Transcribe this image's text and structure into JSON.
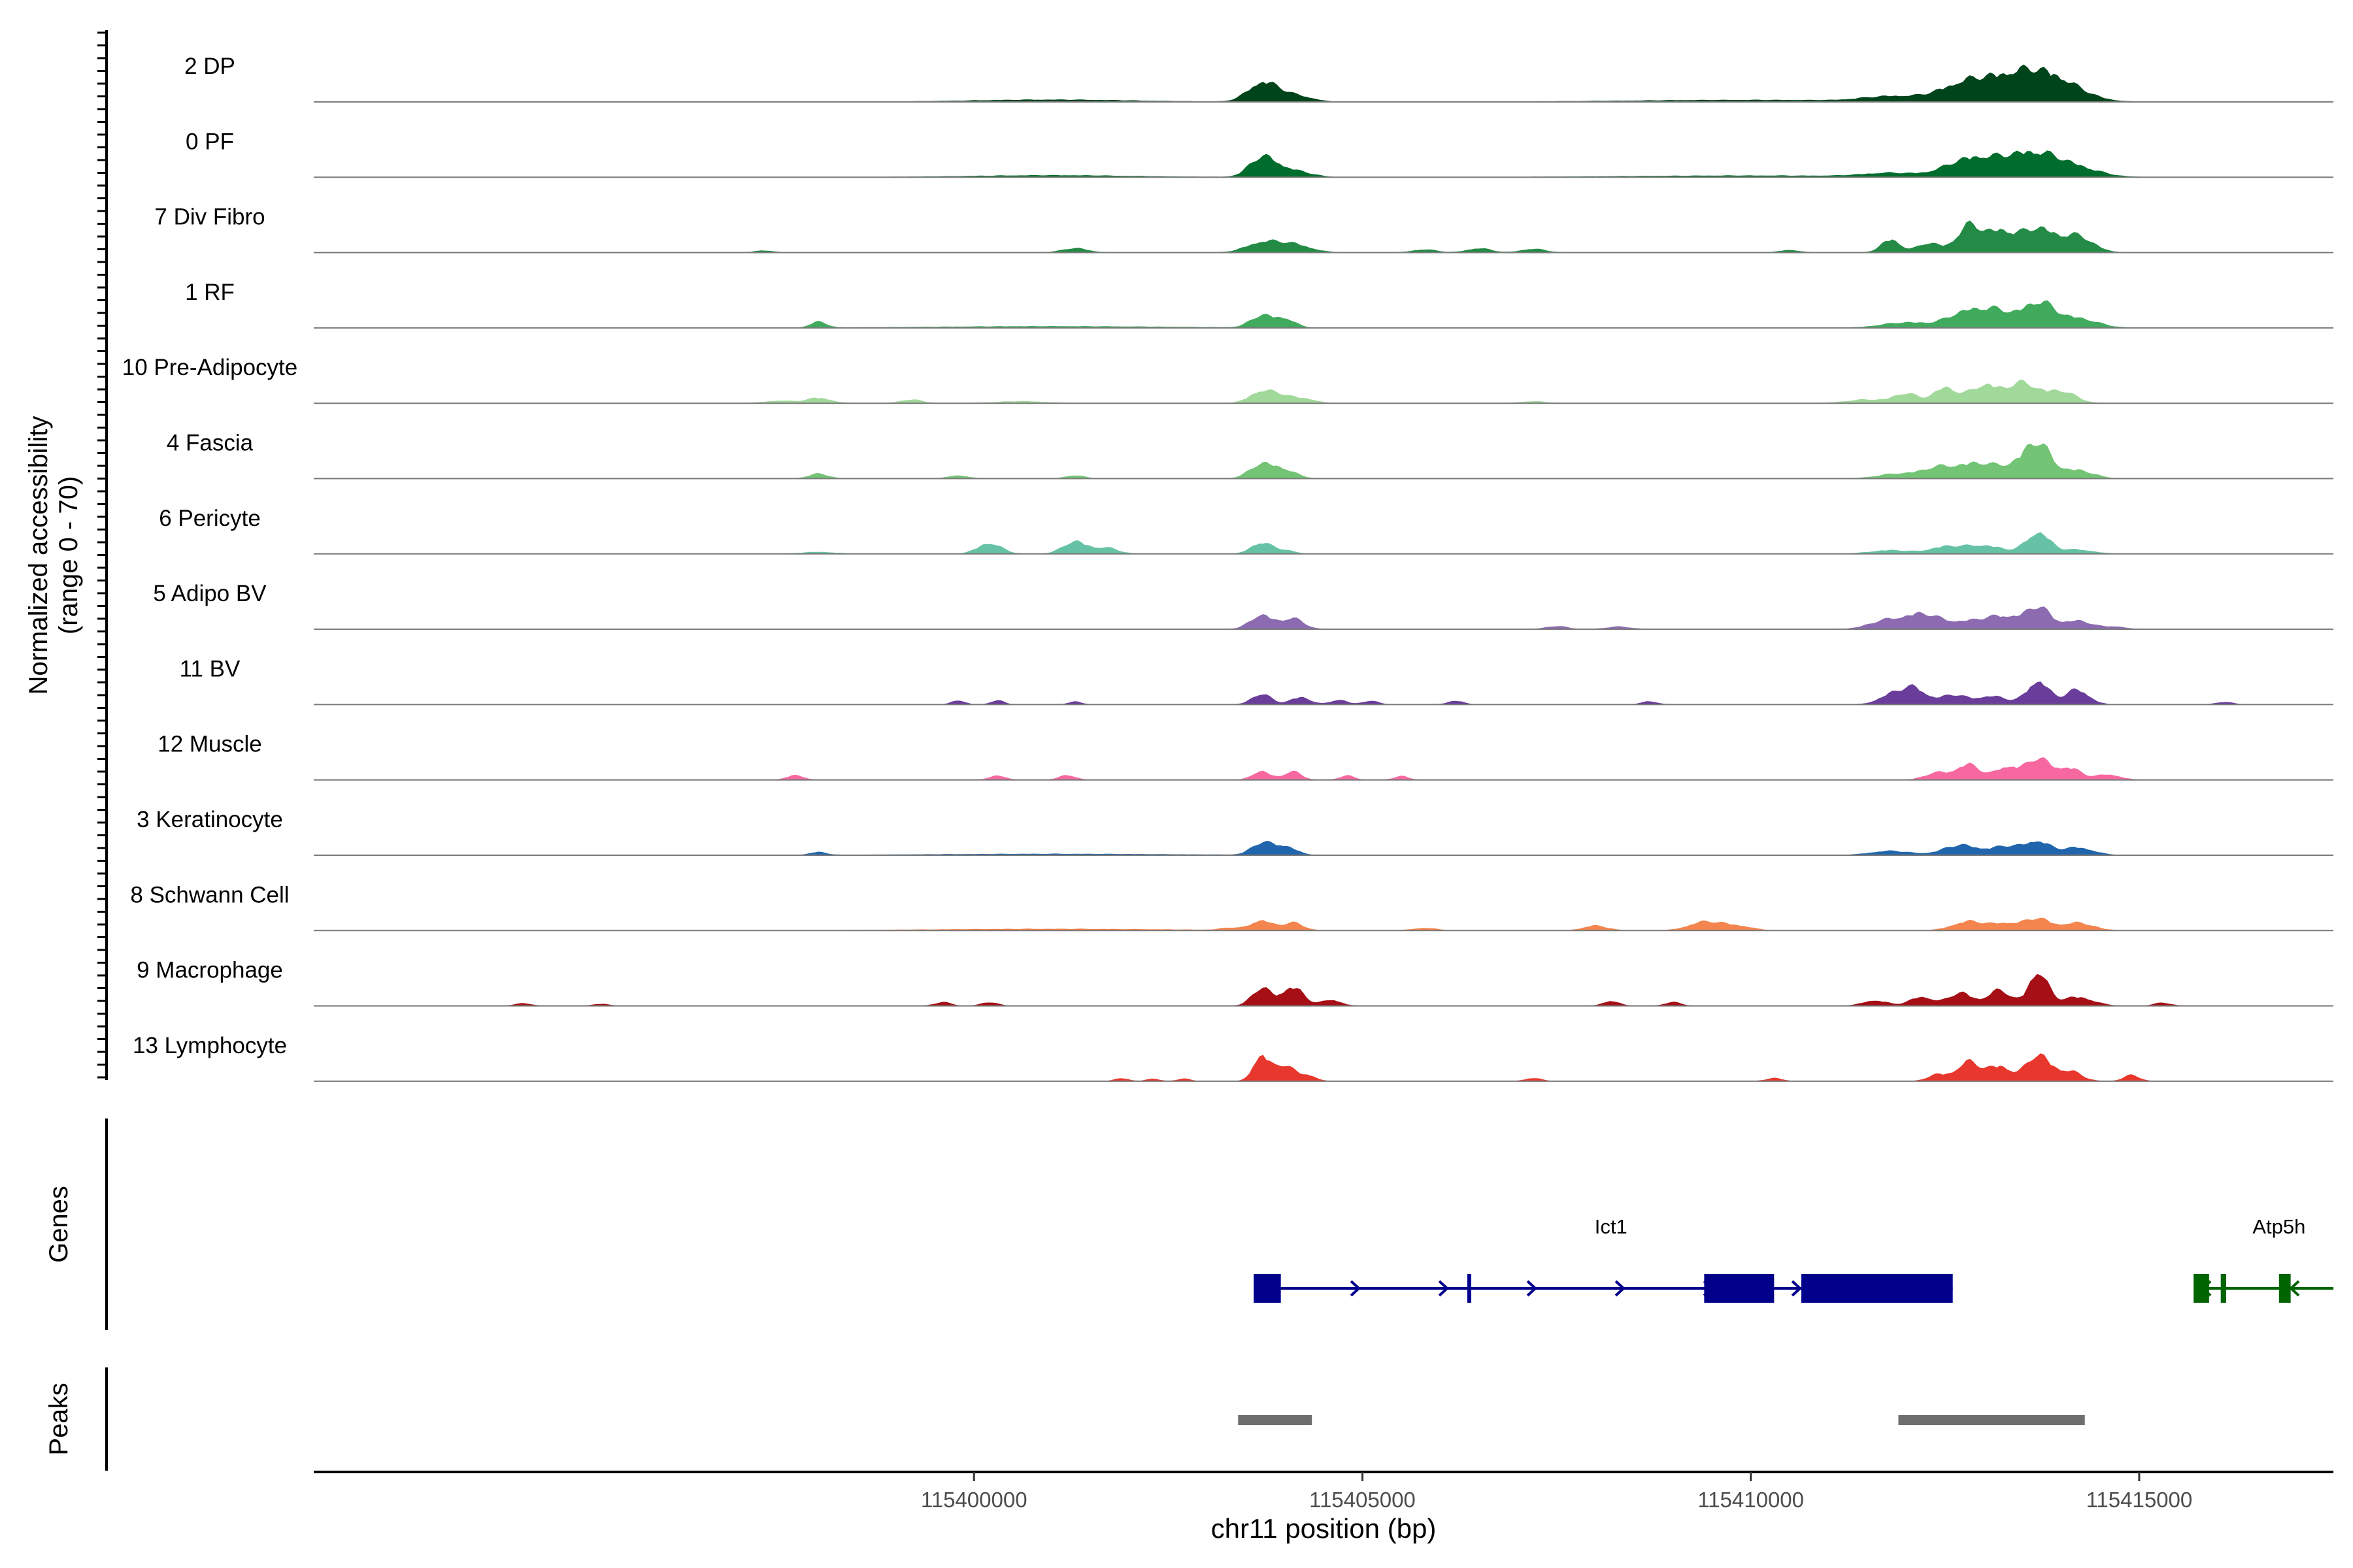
{
  "chart_data": {
    "type": "area",
    "title": "",
    "ylabel": "Normalized accessibility\n(range 0 - 70)",
    "xlabel": "chr11 position (bp)",
    "chromosome": "chr11",
    "xlim": [
      115391500,
      115417500
    ],
    "ylim": [
      0,
      70
    ],
    "xticks": [
      115400000,
      115405000,
      115410000,
      115415000
    ],
    "tick_labels": [
      "115400000",
      "115405000",
      "115410000",
      "115415000"
    ],
    "tracks": [
      {
        "name": "2 DP",
        "color": "#00441B",
        "peaks": [
          [
            115401000,
            0.35,
            1000
          ],
          [
            115403700,
            3.0,
            180
          ],
          [
            115404000,
            1.2,
            200
          ],
          [
            115404300,
            0.4,
            150
          ],
          [
            115411800,
            0.8,
            350
          ],
          [
            115412800,
            3.2,
            350
          ],
          [
            115413300,
            2.2,
            300
          ],
          [
            115413700,
            3.8,
            300
          ],
          [
            115414100,
            1.8,
            300
          ],
          [
            115410000,
            0.3,
            1500
          ]
        ]
      },
      {
        "name": "0 PF",
        "color": "#006D2C",
        "peaks": [
          [
            115401000,
            0.3,
            1000
          ],
          [
            115403700,
            3.2,
            160
          ],
          [
            115404000,
            1.3,
            180
          ],
          [
            115404300,
            0.4,
            150
          ],
          [
            115411800,
            0.6,
            350
          ],
          [
            115412800,
            2.8,
            300
          ],
          [
            115413300,
            1.8,
            300
          ],
          [
            115413700,
            3.2,
            300
          ],
          [
            115414200,
            1.4,
            300
          ],
          [
            115410000,
            0.25,
            1500
          ]
        ]
      },
      {
        "name": "7 Div Fibro",
        "color": "#238B45",
        "peaks": [
          [
            115397300,
            0.3,
            120
          ],
          [
            115401300,
            0.7,
            160
          ],
          [
            115403700,
            1.6,
            200
          ],
          [
            115404100,
            1.4,
            220
          ],
          [
            115405800,
            0.5,
            150
          ],
          [
            115406500,
            0.7,
            150
          ],
          [
            115407200,
            0.6,
            150
          ],
          [
            115411800,
            2.2,
            120
          ],
          [
            115412300,
            1.6,
            150
          ],
          [
            115412800,
            4.2,
            150
          ],
          [
            115413200,
            3.6,
            200
          ],
          [
            115413700,
            4.0,
            200
          ],
          [
            115414200,
            2.8,
            200
          ],
          [
            115410500,
            0.4,
            120
          ]
        ]
      },
      {
        "name": "1 RF",
        "color": "#41AB5D",
        "peaks": [
          [
            115398000,
            1.0,
            100
          ],
          [
            115403700,
            2.0,
            140
          ],
          [
            115404000,
            1.5,
            130
          ],
          [
            115412000,
            0.9,
            300
          ],
          [
            115412800,
            2.8,
            250
          ],
          [
            115413200,
            2.2,
            200
          ],
          [
            115413700,
            4.2,
            200
          ],
          [
            115414200,
            1.6,
            250
          ],
          [
            115401000,
            0.25,
            1500
          ]
        ]
      },
      {
        "name": "10 Pre-Adipocyte",
        "color": "#A1D99B",
        "peaks": [
          [
            115397500,
            0.4,
            180
          ],
          [
            115398000,
            0.9,
            150
          ],
          [
            115399200,
            0.6,
            130
          ],
          [
            115400600,
            0.3,
            300
          ],
          [
            115403700,
            2.0,
            150
          ],
          [
            115404000,
            1.2,
            150
          ],
          [
            115404300,
            0.6,
            120
          ],
          [
            115411500,
            0.6,
            250
          ],
          [
            115412000,
            1.6,
            150
          ],
          [
            115412500,
            2.6,
            150
          ],
          [
            115413000,
            3.0,
            180
          ],
          [
            115413500,
            3.4,
            200
          ],
          [
            115414000,
            2.0,
            180
          ],
          [
            115407200,
            0.3,
            150
          ]
        ]
      },
      {
        "name": "4 Fascia",
        "color": "#74C476",
        "peaks": [
          [
            115398000,
            0.8,
            120
          ],
          [
            115399800,
            0.5,
            120
          ],
          [
            115401300,
            0.5,
            120
          ],
          [
            115403700,
            2.4,
            150
          ],
          [
            115404000,
            1.4,
            150
          ],
          [
            115411900,
            0.8,
            250
          ],
          [
            115412400,
            1.6,
            200
          ],
          [
            115412900,
            2.5,
            250
          ],
          [
            115413500,
            2.2,
            250
          ],
          [
            115413700,
            4.6,
            160
          ],
          [
            115414200,
            1.4,
            200
          ]
        ]
      },
      {
        "name": "6 Pericyte",
        "color": "#66C2A4",
        "peaks": [
          [
            115398000,
            0.3,
            200
          ],
          [
            115400200,
            1.8,
            150
          ],
          [
            115401300,
            2.1,
            150
          ],
          [
            115401700,
            1.0,
            150
          ],
          [
            115403700,
            1.9,
            130
          ],
          [
            115404000,
            0.6,
            120
          ],
          [
            115411800,
            0.6,
            250
          ],
          [
            115412500,
            1.1,
            200
          ],
          [
            115413000,
            1.4,
            250
          ],
          [
            115413700,
            3.6,
            150
          ],
          [
            115414200,
            0.7,
            200
          ]
        ]
      },
      {
        "name": "5 Adipo BV",
        "color": "#8C6BB1",
        "peaks": [
          [
            115403700,
            2.4,
            140
          ],
          [
            115404100,
            1.8,
            140
          ],
          [
            115407500,
            0.5,
            130
          ],
          [
            115408300,
            0.4,
            150
          ],
          [
            115411700,
            1.2,
            200
          ],
          [
            115412200,
            2.6,
            250
          ],
          [
            115412900,
            1.4,
            250
          ],
          [
            115413300,
            1.8,
            200
          ],
          [
            115413700,
            3.6,
            150
          ],
          [
            115414200,
            1.4,
            200
          ],
          [
            115414700,
            0.4,
            120
          ]
        ]
      },
      {
        "name": "11 BV",
        "color": "#6A3D9A",
        "peaks": [
          [
            115399800,
            0.7,
            80
          ],
          [
            115400300,
            0.7,
            80
          ],
          [
            115401300,
            0.5,
            80
          ],
          [
            115403700,
            1.8,
            120
          ],
          [
            115404200,
            1.2,
            130
          ],
          [
            115404700,
            0.8,
            100
          ],
          [
            115405100,
            0.6,
            100
          ],
          [
            115406200,
            0.6,
            100
          ],
          [
            115408700,
            0.5,
            100
          ],
          [
            115411800,
            1.5,
            160
          ],
          [
            115412100,
            2.7,
            160
          ],
          [
            115412600,
            1.6,
            160
          ],
          [
            115413100,
            1.4,
            200
          ],
          [
            115413700,
            4.0,
            140
          ],
          [
            115414200,
            2.5,
            150
          ],
          [
            115416100,
            0.4,
            100
          ]
        ]
      },
      {
        "name": "12 Muscle",
        "color": "#F768A1",
        "peaks": [
          [
            115397700,
            0.8,
            100
          ],
          [
            115400300,
            0.7,
            100
          ],
          [
            115401200,
            0.8,
            100
          ],
          [
            115403700,
            1.5,
            110
          ],
          [
            115404100,
            1.4,
            110
          ],
          [
            115404800,
            0.7,
            90
          ],
          [
            115405500,
            0.6,
            90
          ],
          [
            115412400,
            1.2,
            150
          ],
          [
            115412800,
            2.6,
            150
          ],
          [
            115413300,
            2.2,
            150
          ],
          [
            115413700,
            3.6,
            150
          ],
          [
            115414100,
            2.0,
            150
          ],
          [
            115414600,
            0.9,
            150
          ]
        ]
      },
      {
        "name": "3 Keratinocyte",
        "color": "#2166AC",
        "peaks": [
          [
            115398000,
            0.5,
            100
          ],
          [
            115403700,
            2.0,
            130
          ],
          [
            115404000,
            1.5,
            140
          ],
          [
            115411800,
            0.7,
            250
          ],
          [
            115412700,
            1.7,
            220
          ],
          [
            115413300,
            1.5,
            200
          ],
          [
            115413700,
            2.2,
            150
          ],
          [
            115414200,
            1.3,
            200
          ],
          [
            115401000,
            0.2,
            1500
          ]
        ]
      },
      {
        "name": "8 Schwann Cell",
        "color": "#F4854F",
        "peaks": [
          [
            115403300,
            0.4,
            120
          ],
          [
            115403700,
            1.7,
            130
          ],
          [
            115404100,
            1.3,
            130
          ],
          [
            115405800,
            0.4,
            150
          ],
          [
            115408000,
            0.8,
            150
          ],
          [
            115409400,
            1.4,
            200
          ],
          [
            115409800,
            0.8,
            200
          ],
          [
            115412800,
            1.5,
            200
          ],
          [
            115413300,
            1.2,
            200
          ],
          [
            115413700,
            1.9,
            150
          ],
          [
            115414200,
            1.3,
            200
          ],
          [
            115401000,
            0.25,
            1500
          ]
        ]
      },
      {
        "name": "9 Macrophage",
        "color": "#A50F15",
        "peaks": [
          [
            115394200,
            0.4,
            100
          ],
          [
            115395200,
            0.3,
            100
          ],
          [
            115399600,
            0.6,
            100
          ],
          [
            115400200,
            0.6,
            100
          ],
          [
            115403700,
            3.0,
            120
          ],
          [
            115404100,
            3.2,
            140
          ],
          [
            115404600,
            1.0,
            120
          ],
          [
            115408200,
            0.8,
            100
          ],
          [
            115409000,
            0.6,
            100
          ],
          [
            115411600,
            0.9,
            150
          ],
          [
            115412200,
            1.5,
            150
          ],
          [
            115412700,
            2.2,
            150
          ],
          [
            115413200,
            2.6,
            150
          ],
          [
            115413700,
            5.8,
            120
          ],
          [
            115414200,
            1.5,
            200
          ],
          [
            115415300,
            0.5,
            100
          ]
        ]
      },
      {
        "name": "13 Lymphocyte",
        "color": "#E8372C",
        "peaks": [
          [
            115401900,
            0.5,
            80
          ],
          [
            115402300,
            0.4,
            80
          ],
          [
            115402700,
            0.4,
            80
          ],
          [
            115403700,
            4.5,
            100
          ],
          [
            115404000,
            2.8,
            120
          ],
          [
            115404300,
            1.0,
            100
          ],
          [
            115407200,
            0.5,
            100
          ],
          [
            115410300,
            0.5,
            100
          ],
          [
            115412400,
            1.1,
            120
          ],
          [
            115412800,
            3.2,
            150
          ],
          [
            115413200,
            2.5,
            150
          ],
          [
            115413700,
            4.5,
            150
          ],
          [
            115414100,
            1.7,
            150
          ],
          [
            115414900,
            1.0,
            100
          ]
        ]
      }
    ],
    "genes": [
      {
        "name": "Ict1",
        "color": "#00008B",
        "strand": "+",
        "start": 115403600,
        "end": 115412600,
        "exons": [
          [
            115403600,
            115403950
          ],
          [
            115406350,
            115406400
          ],
          [
            115409400,
            115410300
          ],
          [
            115410650,
            115412600
          ]
        ]
      },
      {
        "name": "Atp5h",
        "color": "#006400",
        "strand": "-",
        "start": 115415700,
        "end": 115417500,
        "exons": [
          [
            115415700,
            115415900
          ],
          [
            115416050,
            115416120
          ],
          [
            115416800,
            115416950
          ]
        ]
      }
    ],
    "peak_regions": [
      [
        115403400,
        115404350
      ],
      [
        115411900,
        115414300
      ]
    ],
    "panels": [
      "Genes",
      "Peaks"
    ]
  }
}
